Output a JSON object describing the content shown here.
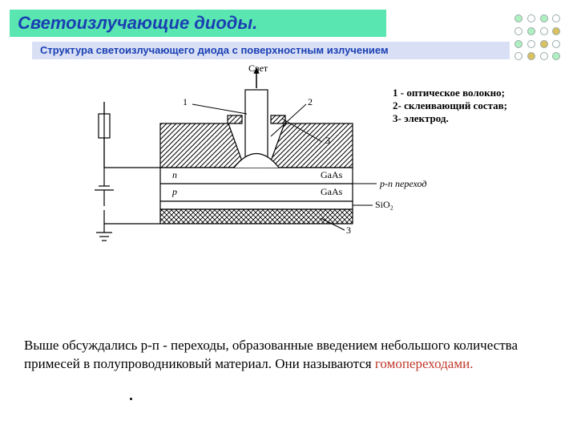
{
  "title": {
    "text": "Светоизлучающие диоды.",
    "bg": "#5ae6b0",
    "color": "#1a3fb3",
    "fontsize": 22
  },
  "subtitle": {
    "text": "Структура светоизлучающего диода с поверхностным излучением",
    "bg": "#d9e0f5",
    "color": "#1a3fb3",
    "fontsize": 13
  },
  "decorative_dots": {
    "colors": [
      "#b0f0c0",
      "#ffffff",
      "#b0f0c0",
      "#ffffff",
      "#ffffff",
      "#b0f0c0",
      "#ffffff",
      "#d9c060",
      "#b0f0c0",
      "#ffffff",
      "#d9c060",
      "#ffffff",
      "#ffffff",
      "#d9c060",
      "#ffffff",
      "#b0f0c0"
    ],
    "border": "#9aa"
  },
  "diagram": {
    "labels": {
      "light": "Свет",
      "num1": "1",
      "num2": "2",
      "num3_top": "3",
      "num3_bot": "3",
      "n": "n",
      "p": "p",
      "gaas_top": "GaAs",
      "gaas_bot": "GaAs",
      "pn": "p-n переход",
      "sio2": "SiO₂"
    },
    "legend": {
      "l1": "1 - оптическое волокно;",
      "l2": "2- склеивающий состав;",
      "l3": "3- электрод."
    },
    "colors": {
      "stroke": "#000000",
      "background": "#ffffff"
    },
    "stroke_width": 1.2
  },
  "body": {
    "pre": "Выше обсуждались р-п - переходы, образованные введением небольшого количества примесей в полупроводниковый материал. Они   называются ",
    "highlight": "гомопереходами.",
    "color_text": "#000000",
    "color_highlight": "#c0392b",
    "fontsize": 17
  }
}
